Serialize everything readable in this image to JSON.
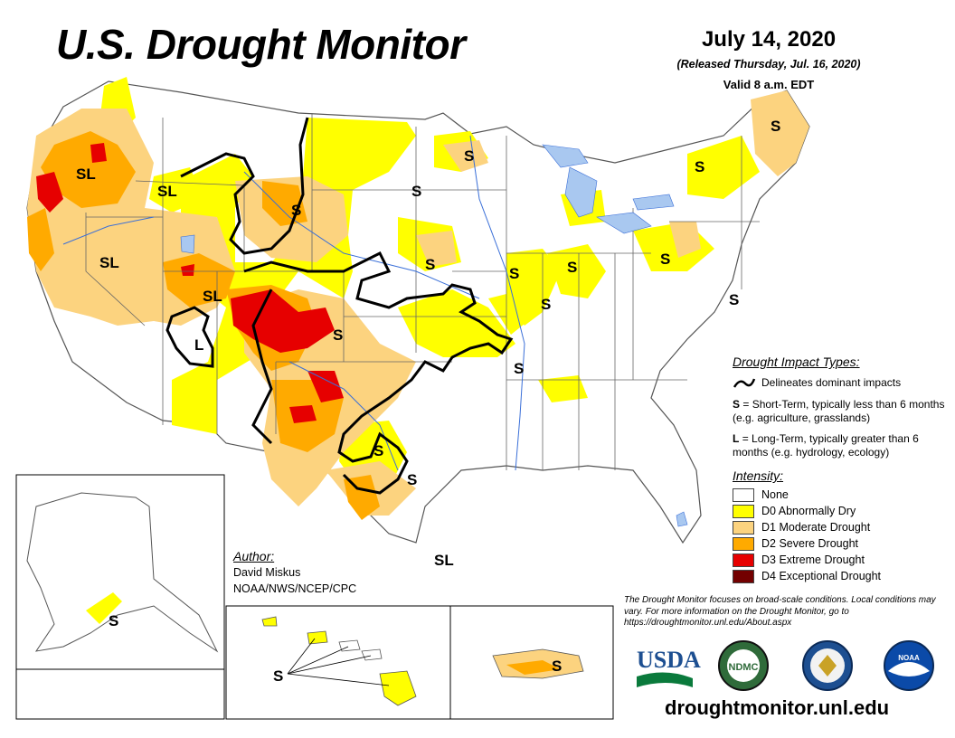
{
  "header": {
    "title": "U.S. Drought Monitor",
    "date": "July 14, 2020",
    "released": "(Released Thursday, Jul. 16, 2020)",
    "valid": "Valid 8 a.m. EDT"
  },
  "map_labels": {
    "or_sl": "SL",
    "id_sl": "SL",
    "nv_sl": "SL",
    "ut_sl": "SL",
    "ut_l": "L",
    "mt_s": "S",
    "nd_s": "S",
    "mn_s": "S",
    "ne_s": "S",
    "ks_s": "S",
    "co_s": "S",
    "il_s": "S",
    "in_s": "S",
    "oh_s": "S",
    "ky_s": "S",
    "ar_s": "S",
    "tx_s1": "S",
    "tx_s2": "S",
    "tx_sl": "SL",
    "ny_s": "S",
    "me_s": "S",
    "pa_s": "S",
    "nj_s": "S",
    "ak_s": "S",
    "hi_s": "S",
    "pr_s": "S"
  },
  "impact_types": {
    "title": "Drought Impact Types:",
    "dominant": "Delineates dominant impacts",
    "short_term_letter": "S",
    "short_term_desc": "= Short-Term, typically less than 6 months (e.g. agriculture, grasslands)",
    "long_term_letter": "L",
    "long_term_desc": "= Long-Term, typically greater than 6 months (e.g. hydrology, ecology)"
  },
  "intensity": {
    "title": "Intensity:",
    "levels": [
      {
        "label": "None",
        "color": "#ffffff"
      },
      {
        "label": "D0 Abnormally Dry",
        "color": "#ffff00"
      },
      {
        "label": "D1 Moderate Drought",
        "color": "#fcd37f"
      },
      {
        "label": "D2 Severe Drought",
        "color": "#ffaa00"
      },
      {
        "label": "D3 Extreme Drought",
        "color": "#e60000"
      },
      {
        "label": "D4 Exceptional Drought",
        "color": "#730000"
      }
    ]
  },
  "author": {
    "title": "Author:",
    "name": "David Miskus",
    "org": "NOAA/NWS/NCEP/CPC"
  },
  "disclaimer": "The Drought Monitor focuses on broad-scale conditions. Local conditions may vary. For more information on the Drought Monitor, go to https://droughtmonitor.unl.edu/About.aspx",
  "logos": {
    "usda": "USDA",
    "ndmc": "NDMC",
    "noaa": "NOAA"
  },
  "url": "droughtmonitor.unl.edu",
  "colors": {
    "d0": "#ffff00",
    "d1": "#fcd37f",
    "d2": "#ffaa00",
    "d3": "#e60000",
    "d4": "#730000",
    "water": "#3a6fd8",
    "lake": "#a9c8f0"
  }
}
